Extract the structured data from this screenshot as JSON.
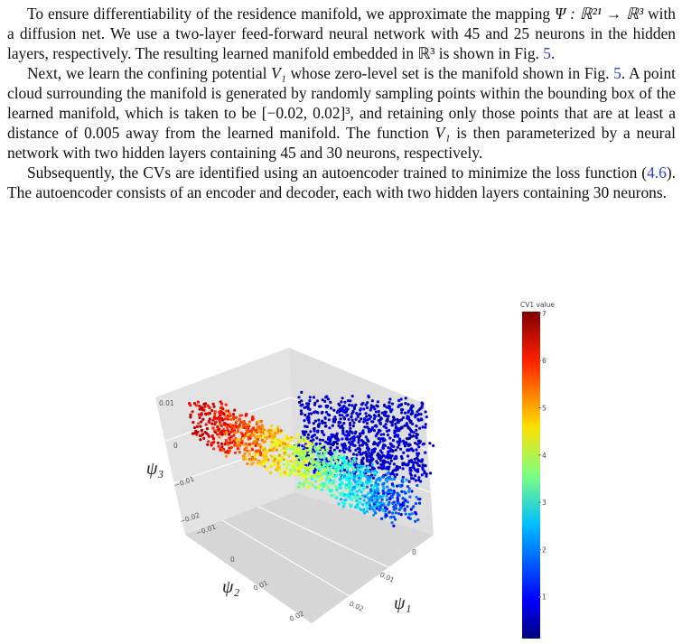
{
  "paragraphs": [
    [
      "To ensure differentiability of the residence manifold, we approximate the mapping ",
      "Ψ : ℝ²¹ → ℝ³",
      " with a diffusion net. We use a two-layer feed-forward neural network with 45 and 25 neurons in the hidden layers, respectively. The resulting learned manifold embedded in ℝ³ is shown in Fig. ",
      "5",
      "."
    ],
    [
      "Next, we learn the confining potential ",
      "V₁",
      " whose zero-level set is the manifold shown in Fig. ",
      "5",
      ". A point cloud surrounding the manifold is generated by randomly sampling points within the bounding box of the learned manifold, which is taken to be [−0.02, 0.02]³, and retaining only those points that are at least a distance of 0.005 away from the learned manifold. The function ",
      "V₁",
      " is then parameterized by a neural network with two hidden layers containing 45 and 30 neurons, respectively."
    ],
    [
      "Subsequently, the CVs are identified using an autoencoder trained to minimize the loss function (",
      "4.6",
      "). The autoencoder consists of an encoder and decoder, each with two hidden layers containing 30 neurons."
    ]
  ],
  "figure": {
    "axis_titles": {
      "x": "ψ₁",
      "y": "ψ₂",
      "z": "ψ₃"
    },
    "x_ticks": [
      "0",
      "0.01",
      "0.02"
    ],
    "y_ticks": [
      "−0.01",
      "0",
      "0.01",
      "0.02"
    ],
    "z_ticks": [
      "0.01",
      "0",
      "−0.01",
      "−0.02"
    ],
    "colorbar": {
      "title": "CV1 value",
      "ticks": [
        1,
        2,
        3,
        4,
        5,
        6,
        7
      ]
    }
  }
}
